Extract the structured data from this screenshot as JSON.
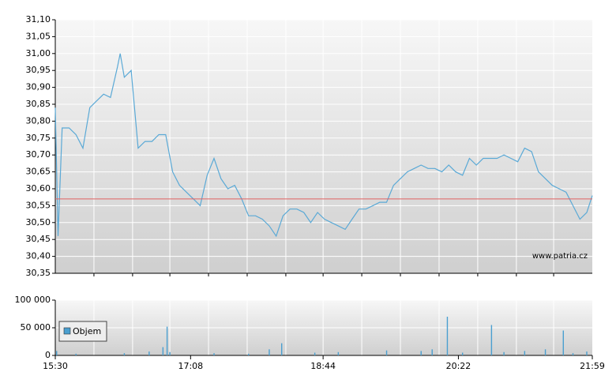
{
  "chart_data": [
    {
      "type": "line",
      "color": "#5aa9d6",
      "watermark": "www.patria.cz",
      "x": [
        "15:30",
        "15:32",
        "15:35",
        "15:40",
        "15:45",
        "15:50",
        "15:55",
        "16:00",
        "16:05",
        "16:10",
        "16:15",
        "16:17",
        "16:20",
        "16:25",
        "16:30",
        "16:35",
        "16:40",
        "16:45",
        "16:50",
        "16:55",
        "17:00",
        "17:05",
        "17:10",
        "17:15",
        "17:20",
        "17:25",
        "17:30",
        "17:35",
        "17:40",
        "17:45",
        "17:50",
        "17:55",
        "18:00",
        "18:05",
        "18:10",
        "18:15",
        "18:20",
        "18:25",
        "18:30",
        "18:35",
        "18:40",
        "18:45",
        "18:50",
        "18:55",
        "19:00",
        "19:05",
        "19:10",
        "19:15",
        "19:20",
        "19:25",
        "19:30",
        "19:35",
        "19:40",
        "19:45",
        "19:50",
        "19:55",
        "20:00",
        "20:05",
        "20:10",
        "20:15",
        "20:20",
        "20:25",
        "20:30",
        "20:35",
        "20:40",
        "20:45",
        "20:50",
        "20:55",
        "21:00",
        "21:05",
        "21:10",
        "21:15",
        "21:20",
        "21:25",
        "21:30",
        "21:35",
        "21:40",
        "21:45",
        "21:50",
        "21:55",
        "21:59"
      ],
      "values": [
        30.84,
        30.46,
        30.78,
        30.78,
        30.76,
        30.72,
        30.84,
        30.86,
        30.88,
        30.87,
        30.96,
        31.0,
        30.93,
        30.95,
        30.72,
        30.74,
        30.74,
        30.76,
        30.76,
        30.65,
        30.61,
        30.59,
        30.57,
        30.55,
        30.64,
        30.69,
        30.63,
        30.6,
        30.61,
        30.57,
        30.52,
        30.52,
        30.51,
        30.49,
        30.46,
        30.52,
        30.54,
        30.54,
        30.53,
        30.5,
        30.53,
        30.51,
        30.5,
        30.49,
        30.48,
        30.51,
        30.54,
        30.54,
        30.55,
        30.56,
        30.56,
        30.61,
        30.63,
        30.65,
        30.66,
        30.67,
        30.66,
        30.66,
        30.65,
        30.67,
        30.65,
        30.64,
        30.69,
        30.67,
        30.69,
        30.69,
        30.69,
        30.7,
        30.69,
        30.68,
        30.72,
        30.71,
        30.65,
        30.63,
        30.61,
        30.6,
        30.59,
        30.55,
        30.51,
        30.53,
        30.58
      ],
      "reference_line": {
        "value": 30.57,
        "color": "#e06060"
      },
      "xlim": [
        "15:30",
        "21:59"
      ],
      "xgrid": [
        "15:58",
        "16:26",
        "16:53",
        "17:21",
        "17:49",
        "18:17",
        "18:44",
        "19:12",
        "19:40",
        "20:08",
        "20:36",
        "21:04",
        "21:31"
      ],
      "ylim": [
        30.35,
        31.1
      ],
      "yticks": [
        {
          "value": 30.35,
          "label": "30,35"
        },
        {
          "value": 30.4,
          "label": "30,40"
        },
        {
          "value": 30.45,
          "label": "30,45"
        },
        {
          "value": 30.5,
          "label": "30,50"
        },
        {
          "value": 30.55,
          "label": "30,55"
        },
        {
          "value": 30.6,
          "label": "30,60"
        },
        {
          "value": 30.65,
          "label": "30,65"
        },
        {
          "value": 30.7,
          "label": "30,70"
        },
        {
          "value": 30.75,
          "label": "30,75"
        },
        {
          "value": 30.8,
          "label": "30,80"
        },
        {
          "value": 30.85,
          "label": "30,85"
        },
        {
          "value": 30.9,
          "label": "30,90"
        },
        {
          "value": 30.95,
          "label": "30,95"
        },
        {
          "value": 31.0,
          "label": "31,00"
        },
        {
          "value": 31.05,
          "label": "31,05"
        },
        {
          "value": 31.1,
          "label": "31,10"
        }
      ],
      "grid": true
    },
    {
      "type": "bar",
      "legend": "left",
      "x": [
        "15:31",
        "15:45",
        "16:20",
        "16:38",
        "16:48",
        "16:51",
        "16:53",
        "17:25",
        "17:50",
        "18:05",
        "18:14",
        "18:38",
        "18:55",
        "19:30",
        "19:55",
        "20:03",
        "20:14",
        "20:25",
        "20:46",
        "20:55",
        "21:10",
        "21:25",
        "21:38",
        "21:45",
        "21:55"
      ],
      "series": [
        {
          "name": "Objem",
          "color": "#4a9fd0",
          "values": [
            8000,
            3000,
            4000,
            7000,
            15000,
            52000,
            6000,
            4000,
            3000,
            11000,
            22000,
            5000,
            6000,
            9000,
            8000,
            11000,
            70000,
            5000,
            55000,
            6000,
            8000,
            11000,
            45000,
            4000,
            7000
          ]
        }
      ],
      "xlim": [
        "15:30",
        "21:59"
      ],
      "xticks": [
        "15:30",
        "17:08",
        "18:44",
        "20:22",
        "21:59"
      ],
      "ylim": [
        0,
        100000
      ],
      "yticks": [
        0,
        {
          "value": 50000,
          "label": "50 000"
        },
        {
          "value": 100000,
          "label": "100 000"
        }
      ],
      "grid": true
    }
  ]
}
